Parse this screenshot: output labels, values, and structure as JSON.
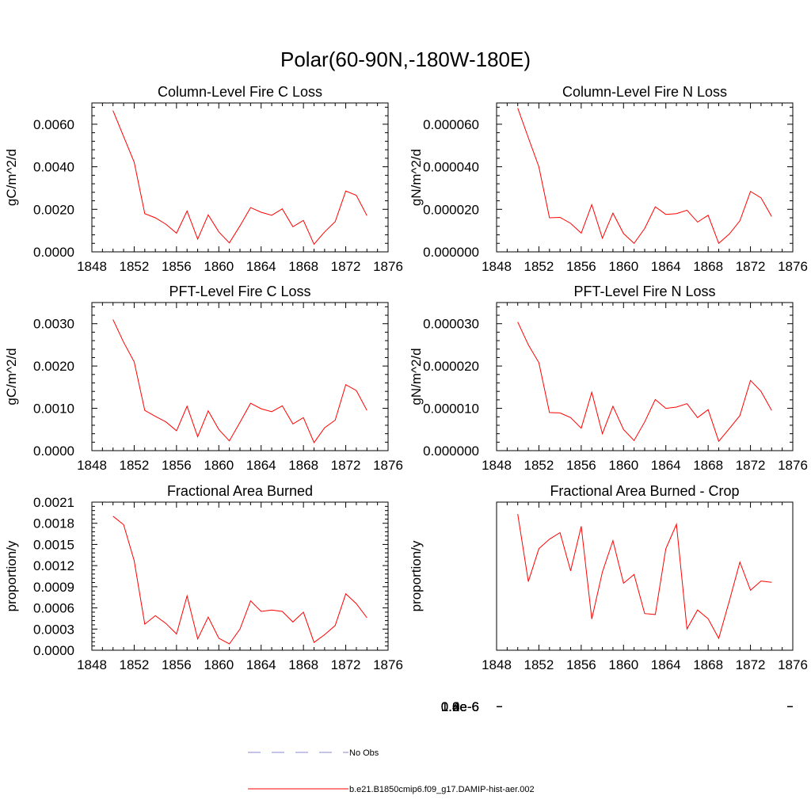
{
  "title": "Polar(60-90N,-180W-180E)",
  "colors": {
    "series": "#ff0000",
    "obs": "#8a8ad0",
    "axis": "#000000"
  },
  "legend": [
    {
      "label": "No Obs",
      "style": "dashed",
      "color": "#8a8ad0"
    },
    {
      "label": "b.e21.B1850cmip6.f09_g17.DAMIP-hist-aer.002",
      "style": "solid",
      "color": "#ff0000"
    }
  ],
  "chart_data": [
    {
      "type": "line",
      "title": "Column-Level Fire C Loss",
      "ylabel": "gC/m^2/d",
      "xlim": [
        1848,
        1876
      ],
      "ylim": [
        0,
        0.007
      ],
      "xticks": [
        "1848",
        "1852",
        "1856",
        "1860",
        "1864",
        "1868",
        "1872",
        "1876"
      ],
      "yticks": [
        "0.0000",
        "0.0020",
        "0.0040",
        "0.0060"
      ],
      "series": [
        {
          "name": "b.e21.B1850cmip6.f09_g17.DAMIP-hist-aer.002",
          "x": [
            1850,
            1851,
            1852,
            1853,
            1854,
            1855,
            1856,
            1857,
            1858,
            1859,
            1860,
            1861,
            1862,
            1863,
            1864,
            1865,
            1866,
            1867,
            1868,
            1869,
            1870,
            1871,
            1872,
            1873,
            1874
          ],
          "y": [
            0.00664,
            0.00542,
            0.00422,
            0.0018,
            0.0016,
            0.0013,
            0.00088,
            0.00192,
            0.0006,
            0.00174,
            0.00094,
            0.00042,
            0.00122,
            0.00208,
            0.00186,
            0.00172,
            0.00202,
            0.00118,
            0.00148,
            0.00036,
            0.00094,
            0.00142,
            0.00286,
            0.00266,
            0.0017
          ]
        }
      ]
    },
    {
      "type": "line",
      "title": "Column-Level Fire N Loss",
      "ylabel": "gN/m^2/d",
      "xlim": [
        1848,
        1876
      ],
      "ylim": [
        0,
        7e-05
      ],
      "xticks": [
        "1848",
        "1852",
        "1856",
        "1860",
        "1864",
        "1868",
        "1872",
        "1876"
      ],
      "yticks": [
        "0.000000",
        "0.000020",
        "0.000040",
        "0.000060"
      ],
      "series": [
        {
          "name": "b.e21.B1850cmip6.f09_g17.DAMIP-hist-aer.002",
          "x": [
            1850,
            1851,
            1852,
            1853,
            1854,
            1855,
            1856,
            1857,
            1858,
            1859,
            1860,
            1861,
            1862,
            1863,
            1864,
            1865,
            1866,
            1867,
            1868,
            1869,
            1870,
            1871,
            1872,
            1873,
            1874
          ],
          "y": [
            6.76e-05,
            5.36e-05,
            4e-05,
            1.6e-05,
            1.62e-05,
            1.34e-05,
            8.8e-06,
            2.22e-05,
            6.4e-06,
            1.82e-05,
            8.6e-06,
            4e-06,
            1.1e-05,
            2.12e-05,
            1.76e-05,
            1.8e-05,
            1.96e-05,
            1.4e-05,
            1.72e-05,
            4e-06,
            8.4e-06,
            1.46e-05,
            2.84e-05,
            2.54e-05,
            1.66e-05
          ]
        }
      ]
    },
    {
      "type": "line",
      "title": "PFT-Level Fire C Loss",
      "ylabel": "gC/m^2/d",
      "xlim": [
        1848,
        1876
      ],
      "ylim": [
        0,
        0.0035
      ],
      "xticks": [
        "1848",
        "1852",
        "1856",
        "1860",
        "1864",
        "1868",
        "1872",
        "1876"
      ],
      "yticks": [
        "0.0000",
        "0.0010",
        "0.0020",
        "0.0030"
      ],
      "series": [
        {
          "name": "b.e21.B1850cmip6.f09_g17.DAMIP-hist-aer.002",
          "x": [
            1850,
            1851,
            1852,
            1853,
            1854,
            1855,
            1856,
            1857,
            1858,
            1859,
            1860,
            1861,
            1862,
            1863,
            1864,
            1865,
            1866,
            1867,
            1868,
            1869,
            1870,
            1871,
            1872,
            1873,
            1874
          ],
          "y": [
            0.0031,
            0.00256,
            0.0021,
            0.00095,
            0.00081,
            0.00068,
            0.00047,
            0.00105,
            0.00033,
            0.00094,
            0.0005,
            0.00023,
            0.00067,
            0.00112,
            0.00099,
            0.00092,
            0.00106,
            0.00063,
            0.00078,
            0.00019,
            0.00054,
            0.00072,
            0.00156,
            0.00142,
            0.00095
          ]
        }
      ]
    },
    {
      "type": "line",
      "title": "PFT-Level Fire N Loss",
      "ylabel": "gN/m^2/d",
      "xlim": [
        1848,
        1876
      ],
      "ylim": [
        0,
        3.5e-05
      ],
      "xticks": [
        "1848",
        "1852",
        "1856",
        "1860",
        "1864",
        "1868",
        "1872",
        "1876"
      ],
      "yticks": [
        "0.000000",
        "0.000010",
        "0.000020",
        "0.000030"
      ],
      "series": [
        {
          "name": "b.e21.B1850cmip6.f09_g17.DAMIP-hist-aer.002",
          "x": [
            1850,
            1851,
            1852,
            1853,
            1854,
            1855,
            1856,
            1857,
            1858,
            1859,
            1860,
            1861,
            1862,
            1863,
            1864,
            1865,
            1866,
            1867,
            1868,
            1869,
            1870,
            1871,
            1872,
            1873,
            1874
          ],
          "y": [
            3.04e-05,
            2.5e-05,
            2.08e-05,
            9e-06,
            8.9e-06,
            7.8e-06,
            5.3e-06,
            1.38e-05,
            4e-06,
            1.05e-05,
            5e-06,
            2.4e-06,
            6.8e-06,
            1.21e-05,
            1e-05,
            1.03e-05,
            1.11e-05,
            7.8e-06,
            9.7e-06,
            2.2e-06,
            5.2e-06,
            8.3e-06,
            1.66e-05,
            1.4e-05,
            9.5e-06
          ]
        }
      ]
    },
    {
      "type": "line",
      "title": "Fractional Area Burned",
      "ylabel": "proportion/y",
      "xlim": [
        1848,
        1876
      ],
      "ylim": [
        0,
        0.0021
      ],
      "xticks": [
        "1848",
        "1852",
        "1856",
        "1860",
        "1864",
        "1868",
        "1872",
        "1876"
      ],
      "yticks": [
        "0.0000",
        "0.0003",
        "0.0006",
        "0.0009",
        "0.0012",
        "0.0015",
        "0.0018",
        "0.0021"
      ],
      "series": [
        {
          "name": "b.e21.B1850cmip6.f09_g17.DAMIP-hist-aer.002",
          "x": [
            1850,
            1851,
            1852,
            1853,
            1854,
            1855,
            1856,
            1857,
            1858,
            1859,
            1860,
            1861,
            1862,
            1863,
            1864,
            1865,
            1866,
            1867,
            1868,
            1869,
            1870,
            1871,
            1872,
            1873,
            1874
          ],
          "y": [
            0.0019,
            0.00178,
            0.00127,
            0.00037,
            0.00049,
            0.00038,
            0.00023,
            0.00077,
            0.00016,
            0.00047,
            0.00017,
            9e-05,
            0.0003,
            0.0007,
            0.00055,
            0.00057,
            0.00055,
            0.0004,
            0.00054,
            0.00011,
            0.00022,
            0.00035,
            0.0008,
            0.00066,
            0.00046
          ]
        }
      ]
    },
    {
      "type": "line",
      "title": "Fractional Area Burned - Crop",
      "ylabel": "proportion/y",
      "xlim": [
        1848,
        1876
      ],
      "ylim": [
        4e-07,
        1.45e-06
      ],
      "xticks": [
        "1848",
        "1852",
        "1856",
        "1860",
        "1864",
        "1868",
        "1872",
        "1876"
      ],
      "yticks": [
        "0.4e-6",
        "0.6e-6",
        "0.8e-6",
        "1.0e-6",
        "1.2e-6",
        "1.4e-6"
      ],
      "series": [
        {
          "name": "b.e21.B1850cmip6.f09_g17.DAMIP-hist-aer.002",
          "x": [
            1850,
            1851,
            1852,
            1853,
            1854,
            1855,
            1856,
            1857,
            1858,
            1859,
            1860,
            1861,
            1862,
            1863,
            1864,
            1865,
            1866,
            1867,
            1868,
            1869,
            1870,
            1871,
            1872,
            1873,
            1874
          ],
          "y": [
            1.365e-06,
            8.87e-07,
            1.12e-06,
            1.187e-06,
            1.234e-06,
            9.63e-07,
            1.279e-06,
            6.21e-07,
            9.55e-07,
            1.177e-06,
            8.75e-07,
            9.37e-07,
            6.6e-07,
            6.53e-07,
            1.119e-06,
            1.293e-06,
            5.51e-07,
            6.85e-07,
            6.23e-07,
            4.84e-07,
            7.5e-07,
            1.025e-06,
            8.25e-07,
            8.91e-07,
            8.81e-07
          ]
        }
      ]
    }
  ]
}
